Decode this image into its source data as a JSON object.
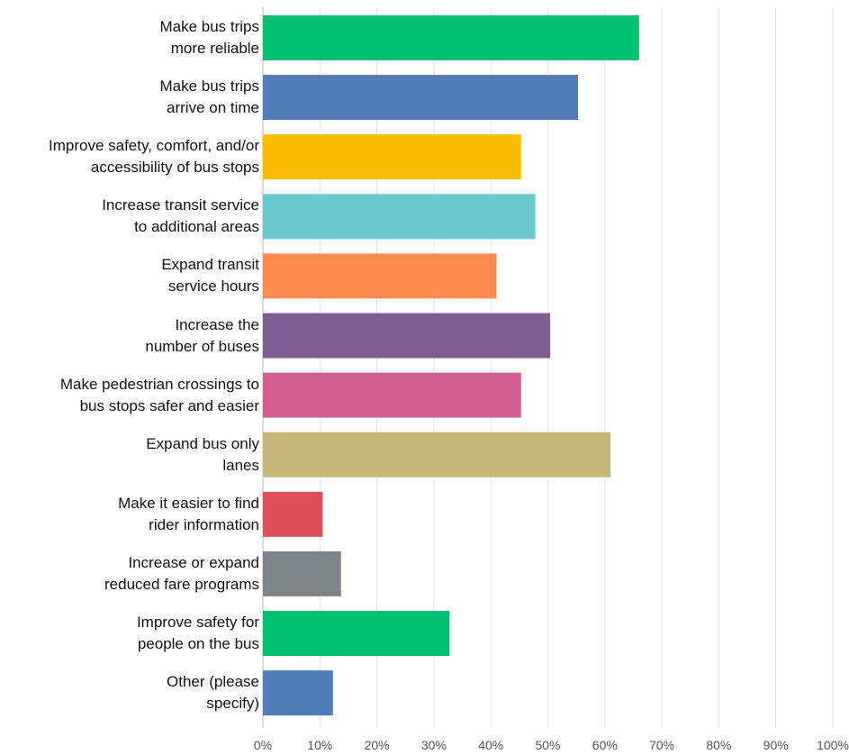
{
  "chart_data": {
    "type": "bar",
    "orientation": "horizontal",
    "title": "",
    "xlabel": "",
    "ylabel": "",
    "xlim": [
      0,
      100
    ],
    "grid": true,
    "legend": "none",
    "tick_labels": [
      "0%",
      "10%",
      "20%",
      "30%",
      "40%",
      "50%",
      "60%",
      "70%",
      "80%",
      "90%",
      "100%"
    ],
    "categories": [
      [
        "Make bus trips",
        "more reliable"
      ],
      [
        "Make bus trips",
        "arrive on time"
      ],
      [
        "Improve safety, comfort, and/or",
        "accessibility of bus stops"
      ],
      [
        "Increase transit service",
        "to additional areas"
      ],
      [
        "Expand transit",
        "service hours"
      ],
      [
        "Increase the",
        "number of buses"
      ],
      [
        "Make pedestrian crossings to",
        "bus stops safer and easier"
      ],
      [
        "Expand bus only",
        "lanes"
      ],
      [
        "Make it easier to find",
        "rider information"
      ],
      [
        "Increase or expand",
        "reduced fare programs"
      ],
      [
        "Improve safety for",
        "people on the bus"
      ],
      [
        "Other (please",
        "specify)"
      ]
    ],
    "values": [
      66,
      55.3,
      45.3,
      47.8,
      41,
      50.4,
      45.3,
      61,
      10.5,
      13.7,
      32.7,
      12.3
    ],
    "colors": [
      "#00bf6f",
      "#507cb6",
      "#f9be00",
      "#6bc8cd",
      "#ff8b4f",
      "#7d5e90",
      "#d25f90",
      "#c7b879",
      "#dd4e5b",
      "#7c848a",
      "#00bf6f",
      "#507cb6"
    ],
    "grid_color": "#e6e6e6",
    "axis_color": "#bbbbbb"
  }
}
